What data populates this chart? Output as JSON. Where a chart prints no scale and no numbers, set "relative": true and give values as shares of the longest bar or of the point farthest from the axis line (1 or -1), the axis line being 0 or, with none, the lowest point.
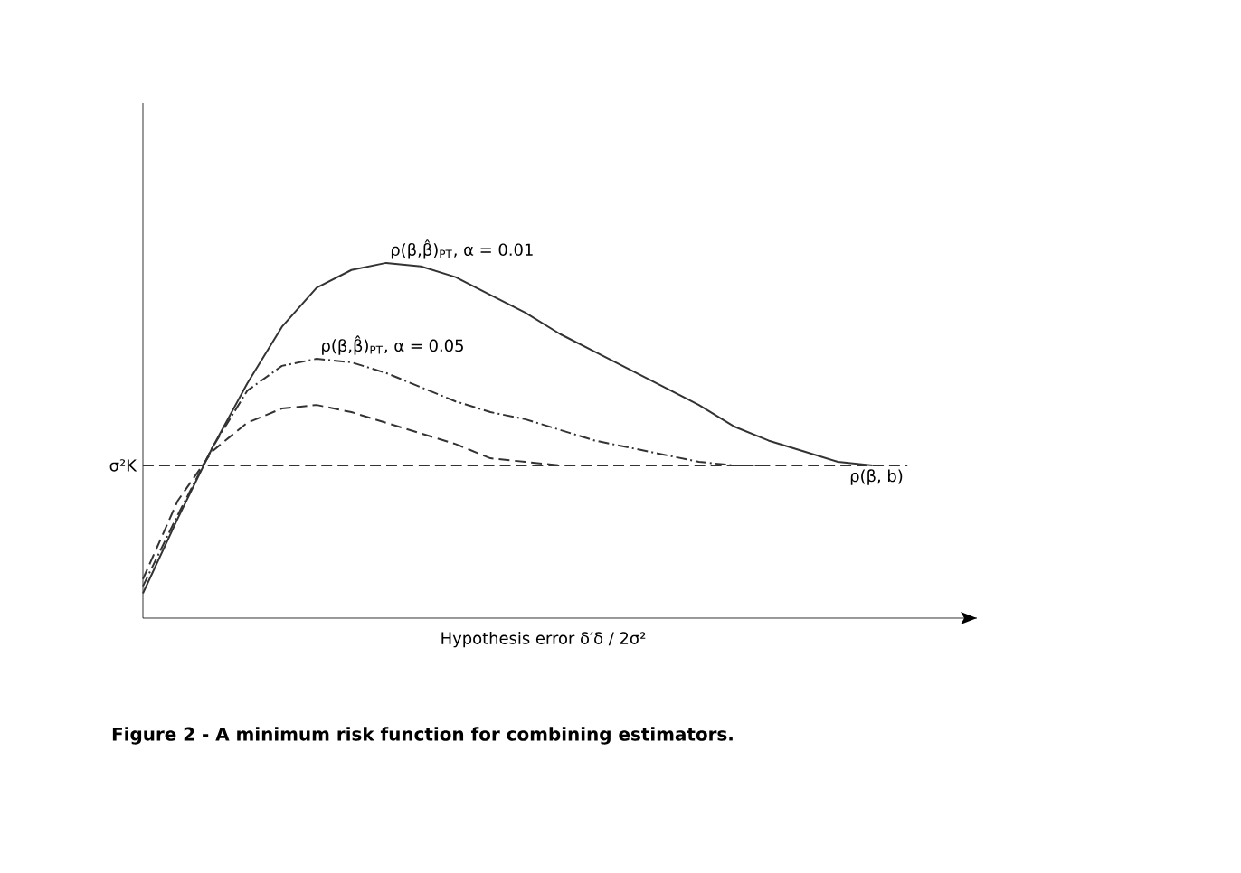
{
  "chart_data": {
    "type": "line",
    "relative": true,
    "xlabel": "Hypothesis error δ′δ / 2σ²",
    "categories": [
      null,
      null,
      null,
      null,
      null,
      null,
      null,
      null,
      null,
      null,
      null,
      null,
      null,
      null,
      null,
      null,
      null,
      null,
      null,
      null,
      null,
      null,
      null
    ],
    "legend": false,
    "marker": "none",
    "series": [
      {
        "name": "ρ(β,β̂)$_{PT}$, α = 0.01",
        "color": "#333333",
        "line_style": "solid",
        "values": [
          0.07,
          0.28,
          0.48,
          0.66,
          0.82,
          0.93,
          0.98,
          1.0,
          0.99,
          0.96,
          0.91,
          0.86,
          0.8,
          0.75,
          0.7,
          0.65,
          0.6,
          0.54,
          0.5,
          0.47,
          0.44,
          0.43,
          null
        ]
      },
      {
        "name": "ρ(β,β̂)$_{PT}$, α = 0.05",
        "color": "#333333",
        "line_style": "dashdot",
        "values": [
          0.09,
          0.29,
          0.48,
          0.64,
          0.71,
          0.73,
          0.72,
          0.69,
          0.65,
          0.61,
          0.58,
          0.56,
          0.53,
          0.5,
          0.48,
          0.46,
          0.44,
          0.43,
          0.43,
          null,
          null,
          null,
          null
        ]
      },
      {
        "color": "#333333",
        "line_style": "dashed",
        "values": [
          0.11,
          0.33,
          0.47,
          0.55,
          0.59,
          0.6,
          0.58,
          0.55,
          0.52,
          0.49,
          0.45,
          0.44,
          0.43,
          null,
          null,
          null,
          null,
          null,
          null,
          null,
          null,
          null,
          null
        ]
      },
      {
        "name": "ρ(β, b)",
        "color": "#333333",
        "line_style": "dashed",
        "values": [
          0.43,
          0.43,
          0.43,
          0.43,
          0.43,
          0.43,
          0.43,
          0.43,
          0.43,
          0.43,
          0.43,
          0.43,
          0.43,
          0.43,
          0.43,
          0.43,
          0.43,
          0.43,
          0.43,
          0.43,
          0.43,
          0.43,
          0.43
        ]
      }
    ],
    "annotations": [
      "σ²K",
      "Figure 2 - A minimum risk function for combining estimators."
    ]
  }
}
